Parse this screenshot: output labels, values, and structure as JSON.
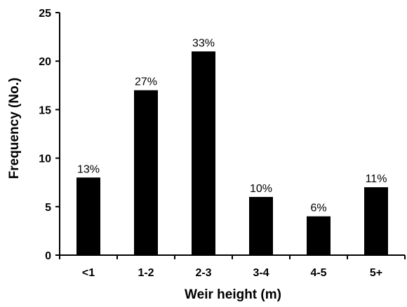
{
  "chart_data": {
    "type": "bar",
    "title": "",
    "xlabel": "Weir height (m)",
    "ylabel": "Frequency (No.)",
    "categories": [
      "<1",
      "1-2",
      "2-3",
      "3-4",
      "4-5",
      "5+"
    ],
    "values": [
      8,
      17,
      21,
      6,
      4,
      7
    ],
    "data_labels": [
      "13%",
      "27%",
      "33%",
      "10%",
      "6%",
      "11%"
    ],
    "ylim": [
      0,
      25
    ],
    "yticks": [
      0,
      5,
      10,
      15,
      20,
      25
    ],
    "bar_color": "#000000",
    "grid": false,
    "legend": "none"
  }
}
